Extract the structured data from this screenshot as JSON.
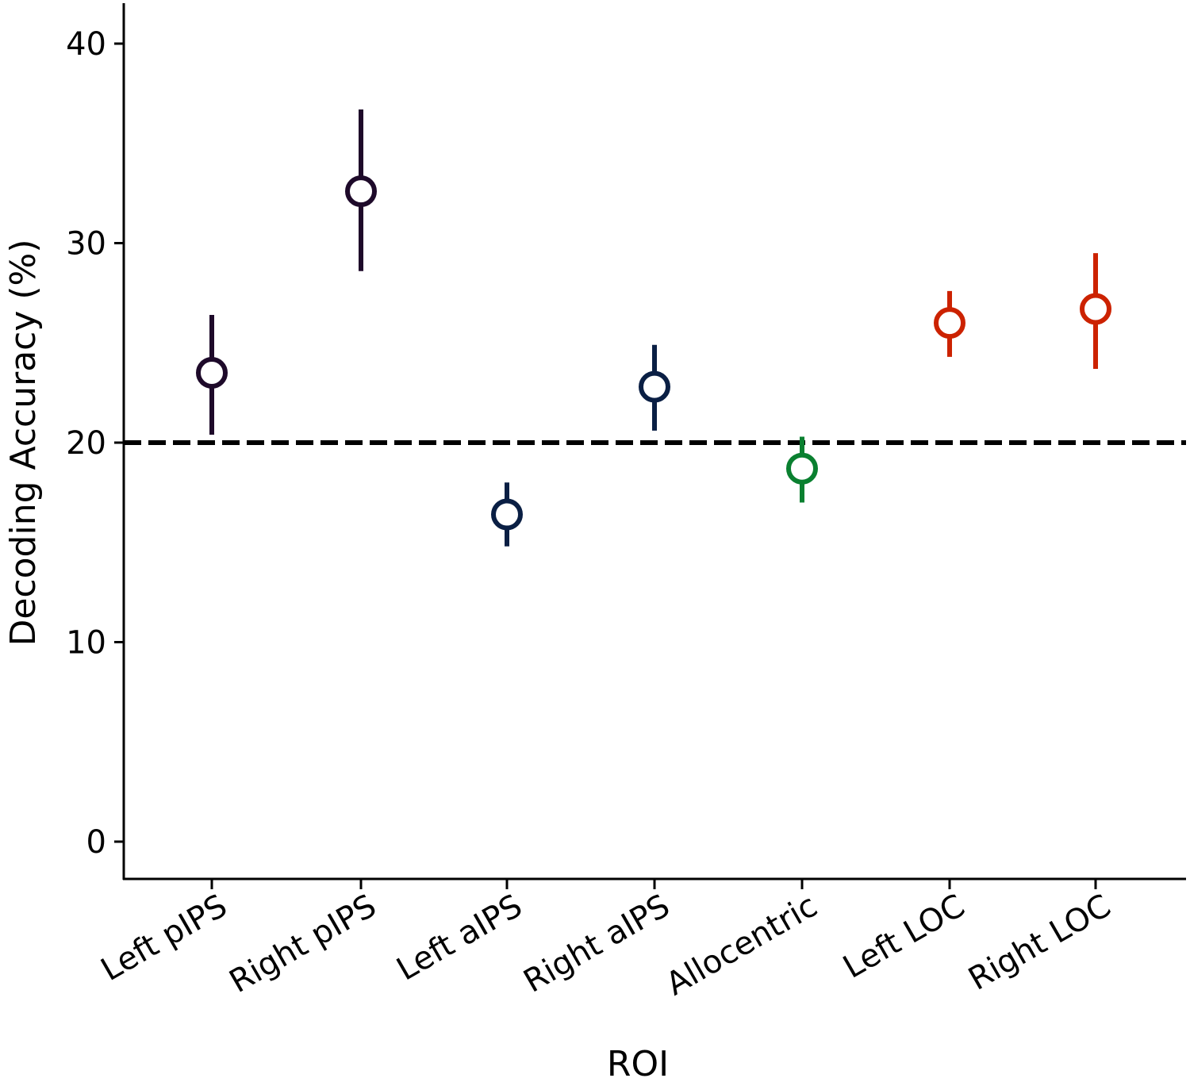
{
  "chart_data": {
    "type": "scatter",
    "title": "",
    "xlabel": "ROI",
    "ylabel": "Decoding Accuracy (%)",
    "ylim": [
      -1.9,
      42
    ],
    "yticks": [
      "0",
      "10",
      "20",
      "30",
      "40"
    ],
    "ytick_values": [
      0,
      10,
      20,
      30,
      40
    ],
    "grid": false,
    "reference_line": {
      "y": 20,
      "style": "dashed",
      "color": "#000000"
    },
    "categories": [
      "Left pIPS",
      "Right pIPS",
      "Left aIPS",
      "Right aIPS",
      "Allocentric",
      "Left LOC",
      "Right LOC"
    ],
    "values": [
      23.5,
      32.6,
      16.4,
      22.8,
      18.7,
      26.0,
      26.7
    ],
    "error_low": [
      20.4,
      28.6,
      14.8,
      20.6,
      17.0,
      24.3,
      23.7
    ],
    "error_high": [
      26.4,
      36.7,
      18.0,
      24.9,
      20.3,
      27.6,
      29.5
    ],
    "colors": [
      "#1e0a2a",
      "#1e0a2a",
      "#0a1f44",
      "#0a1f44",
      "#0a8030",
      "#cc2200",
      "#cc2200"
    ],
    "marker": "open-circle"
  }
}
